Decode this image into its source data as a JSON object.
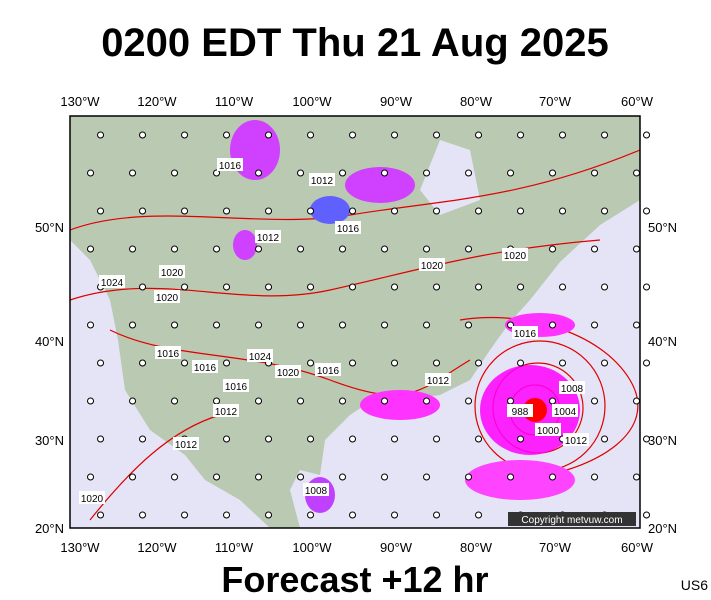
{
  "title": "0200 EDT Thu 21 Aug 2025",
  "longitude_labels": [
    "130°W",
    "120°W",
    "110°W",
    "100°W",
    "90°W",
    "80°W",
    "70°W",
    "60°W"
  ],
  "latitude_labels": [
    "50°N",
    "40°N",
    "30°N",
    "20°N"
  ],
  "isobar_labels": [
    "1016",
    "1012",
    "1016",
    "1012",
    "1020",
    "1020",
    "1024",
    "1020",
    "1020",
    "1016",
    "1016",
    "1016",
    "1016",
    "1024",
    "1020",
    "1016",
    "1012",
    "1012",
    "1008",
    "1004",
    "988",
    "1000",
    "1012",
    "1012",
    "1008",
    "1020"
  ],
  "copyright": "Copyright metvuw.com",
  "footer": "Forecast +12 hr",
  "region_code": "US6"
}
